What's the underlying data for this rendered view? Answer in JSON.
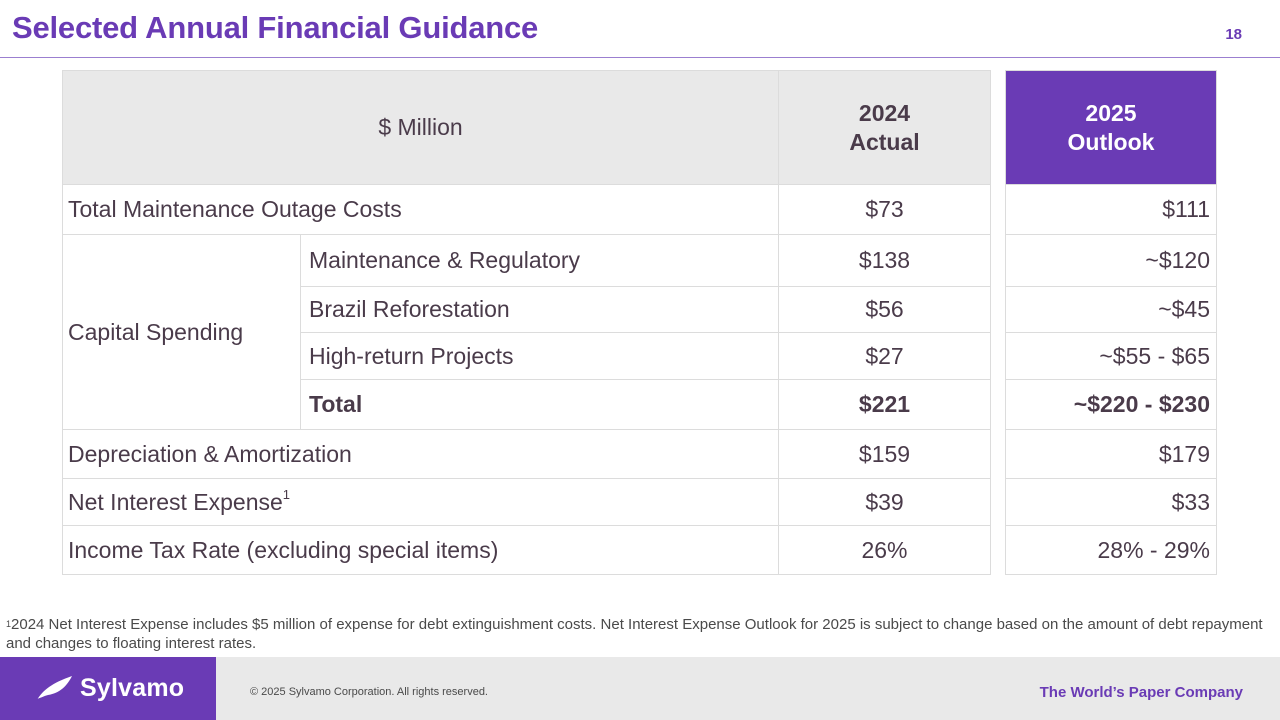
{
  "header": {
    "title": "Selected Annual Financial Guidance",
    "page_number": "18"
  },
  "table": {
    "unit_label": "$ Million",
    "col_2024": {
      "year": "2024",
      "label": "Actual"
    },
    "col_2025": {
      "year": "2025",
      "label": "Outlook"
    },
    "rows": {
      "maintenance_outage": {
        "label": "Total Maintenance Outage Costs",
        "v2024": "$73",
        "v2025": "$111"
      },
      "capital_spending": {
        "label": "Capital Spending",
        "items": [
          {
            "label": "Maintenance & Regulatory",
            "v2024": "$138",
            "v2025": "~$120"
          },
          {
            "label": "Brazil Reforestation",
            "v2024": "$56",
            "v2025": "~$45"
          },
          {
            "label": "High-return Projects",
            "v2024": "$27",
            "v2025": "~$55 - $65"
          },
          {
            "label": "Total",
            "v2024": "$221",
            "v2025": "~$220 - $230"
          }
        ]
      },
      "depreciation": {
        "label": "Depreciation & Amortization",
        "v2024": "$159",
        "v2025": "$179"
      },
      "net_interest": {
        "label": "Net Interest Expense",
        "sup": "1",
        "v2024": "$39",
        "v2025": "$33"
      },
      "income_tax": {
        "label": "Income Tax Rate (excluding special items)",
        "v2024": "26%",
        "v2025": "28% - 29%"
      }
    }
  },
  "footnote": {
    "marker": "1",
    "text": "2024 Net Interest Expense includes $5 million of expense for debt extinguishment costs. Net Interest Expense Outlook for 2025 is subject to change based on the amount of debt repayment and changes to floating interest rates."
  },
  "footer": {
    "logo_text": "Sylvamo",
    "copyright": "© 2025 Sylvamo Corporation. All rights reserved.",
    "tagline": "The World’s Paper Company"
  },
  "colors": {
    "brand_purple": "#6a3bb5",
    "header_gray": "#e9e9e9"
  },
  "icons": {
    "logo": "sylvamo-logo-icon"
  }
}
